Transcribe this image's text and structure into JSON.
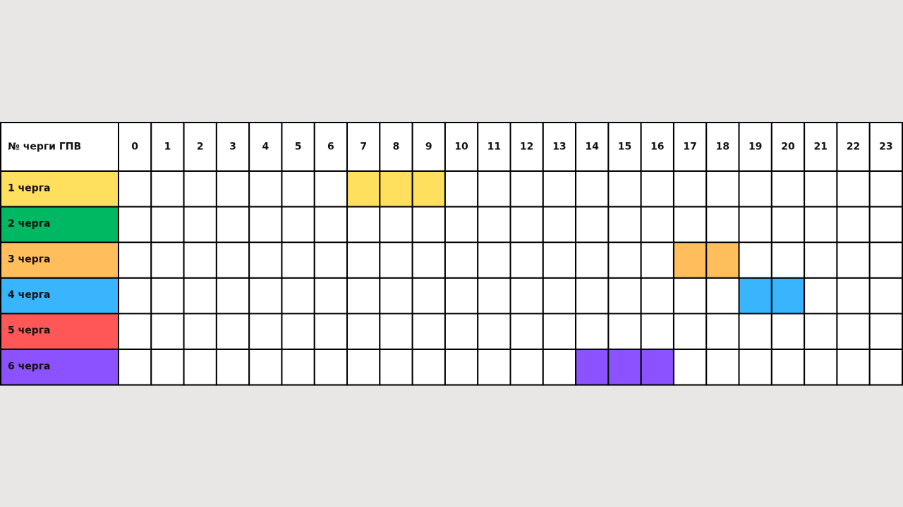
{
  "table": {
    "header": [
      "№ черги ГПВ",
      "0",
      "1",
      "2",
      "3",
      "4",
      "5",
      "6",
      "7",
      "8",
      "9",
      "10",
      "11",
      "12",
      "13",
      "14",
      "15",
      "16",
      "17",
      "18",
      "19",
      "20",
      "21",
      "22",
      "23"
    ],
    "rows": [
      {
        "label": "1 черга",
        "color": "#ffdf5e",
        "highlight": [
          7,
          8,
          9
        ]
      },
      {
        "label": "2 черга",
        "color": "#00b862",
        "highlight": []
      },
      {
        "label": "3 черга",
        "color": "#ffbe5c",
        "highlight": [
          17,
          18
        ]
      },
      {
        "label": "4 черга",
        "color": "#38b5fd",
        "highlight": [
          19,
          20
        ]
      },
      {
        "label": "5 черга",
        "color": "#ff5757",
        "highlight": []
      },
      {
        "label": "6 черга",
        "color": "#8c52ff",
        "highlight": [
          14,
          15,
          16
        ]
      }
    ]
  }
}
